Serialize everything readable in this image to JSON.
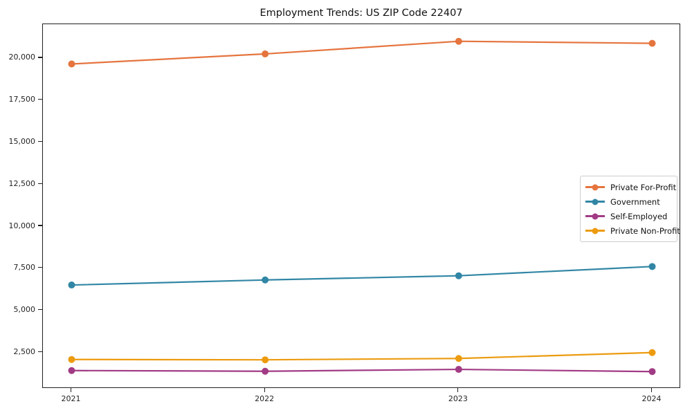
{
  "chart_data": {
    "type": "line",
    "title": "Employment Trends: US ZIP Code 22407",
    "xlabel": "",
    "ylabel": "",
    "x": [
      "2021",
      "2022",
      "2023",
      "2024"
    ],
    "series": [
      {
        "name": "Private For-Profit",
        "color": "#E5743E",
        "values": [
          19650,
          20250,
          21000,
          20880
        ]
      },
      {
        "name": "Government",
        "color": "#3186A5",
        "values": [
          6500,
          6800,
          7050,
          7600
        ]
      },
      {
        "name": "Self-Employed",
        "color": "#A23B85",
        "values": [
          1410,
          1370,
          1480,
          1350
        ]
      },
      {
        "name": "Private Non-Profit",
        "color": "#EC9B0F",
        "values": [
          2070,
          2050,
          2130,
          2480
        ]
      }
    ],
    "yticks": [
      {
        "value": 2500,
        "label": "2,500"
      },
      {
        "value": 5000,
        "label": "5,000"
      },
      {
        "value": 7500,
        "label": "7,500"
      },
      {
        "value": 10000,
        "label": "10,000"
      },
      {
        "value": 12500,
        "label": "12,500"
      },
      {
        "value": 15000,
        "label": "15,000"
      },
      {
        "value": 17500,
        "label": "17,500"
      },
      {
        "value": 20000,
        "label": "20,000"
      }
    ],
    "ylim": [
      330,
      22016
    ],
    "grid": false,
    "legend_position": "center right",
    "axis_color": "#1f1f1f",
    "background": "#ffffff",
    "marker": "circle",
    "line_width": 2.2,
    "marker_radius": 5
  }
}
